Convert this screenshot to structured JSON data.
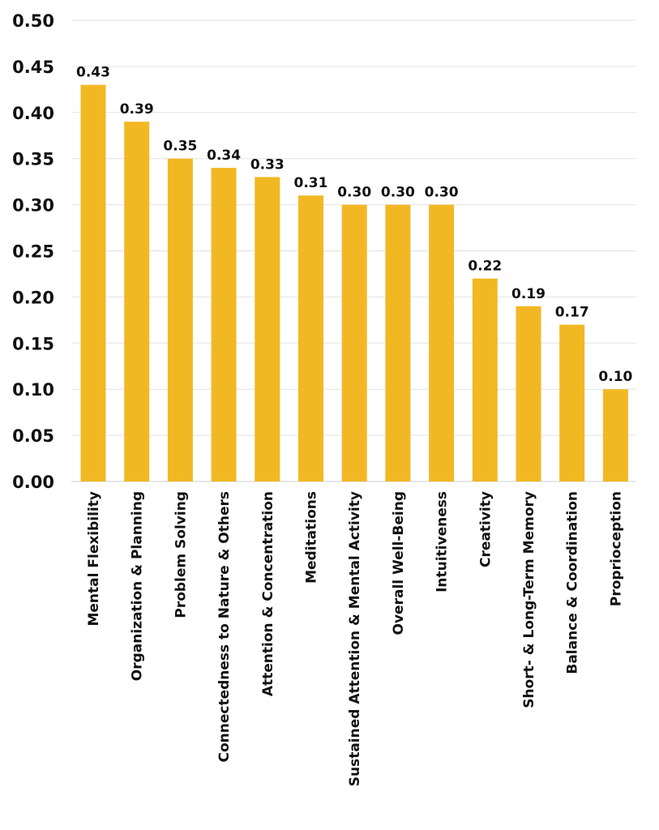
{
  "chart_data": {
    "type": "bar",
    "title": "",
    "xlabel": "",
    "ylabel": "",
    "ylim": [
      0,
      0.5
    ],
    "y_ticks": [
      "0.00",
      "0.05",
      "0.10",
      "0.15",
      "0.20",
      "0.25",
      "0.30",
      "0.35",
      "0.40",
      "0.45",
      "0.50"
    ],
    "grid": true,
    "bar_color": "#F2B824",
    "categories": [
      "Mental Flexibility",
      "Organization & Planning",
      "Problem Solving",
      "Connectedness to Nature & Others",
      "Attention & Concentration",
      "Meditations",
      "Sustained Attention & Mental Activity",
      "Overall Well-Being",
      "Intuitiveness",
      "Creativity",
      "Short- & Long-Term Memory",
      "Balance & Coordination",
      "Proprioception"
    ],
    "values": [
      0.43,
      0.39,
      0.35,
      0.34,
      0.33,
      0.31,
      0.3,
      0.3,
      0.3,
      0.22,
      0.19,
      0.17,
      0.1
    ],
    "data_labels": [
      "0.43",
      "0.39",
      "0.35",
      "0.34",
      "0.33",
      "0.31",
      "0.30",
      "0.30",
      "0.30",
      "0.22",
      "0.19",
      "0.17",
      "0.10"
    ]
  }
}
